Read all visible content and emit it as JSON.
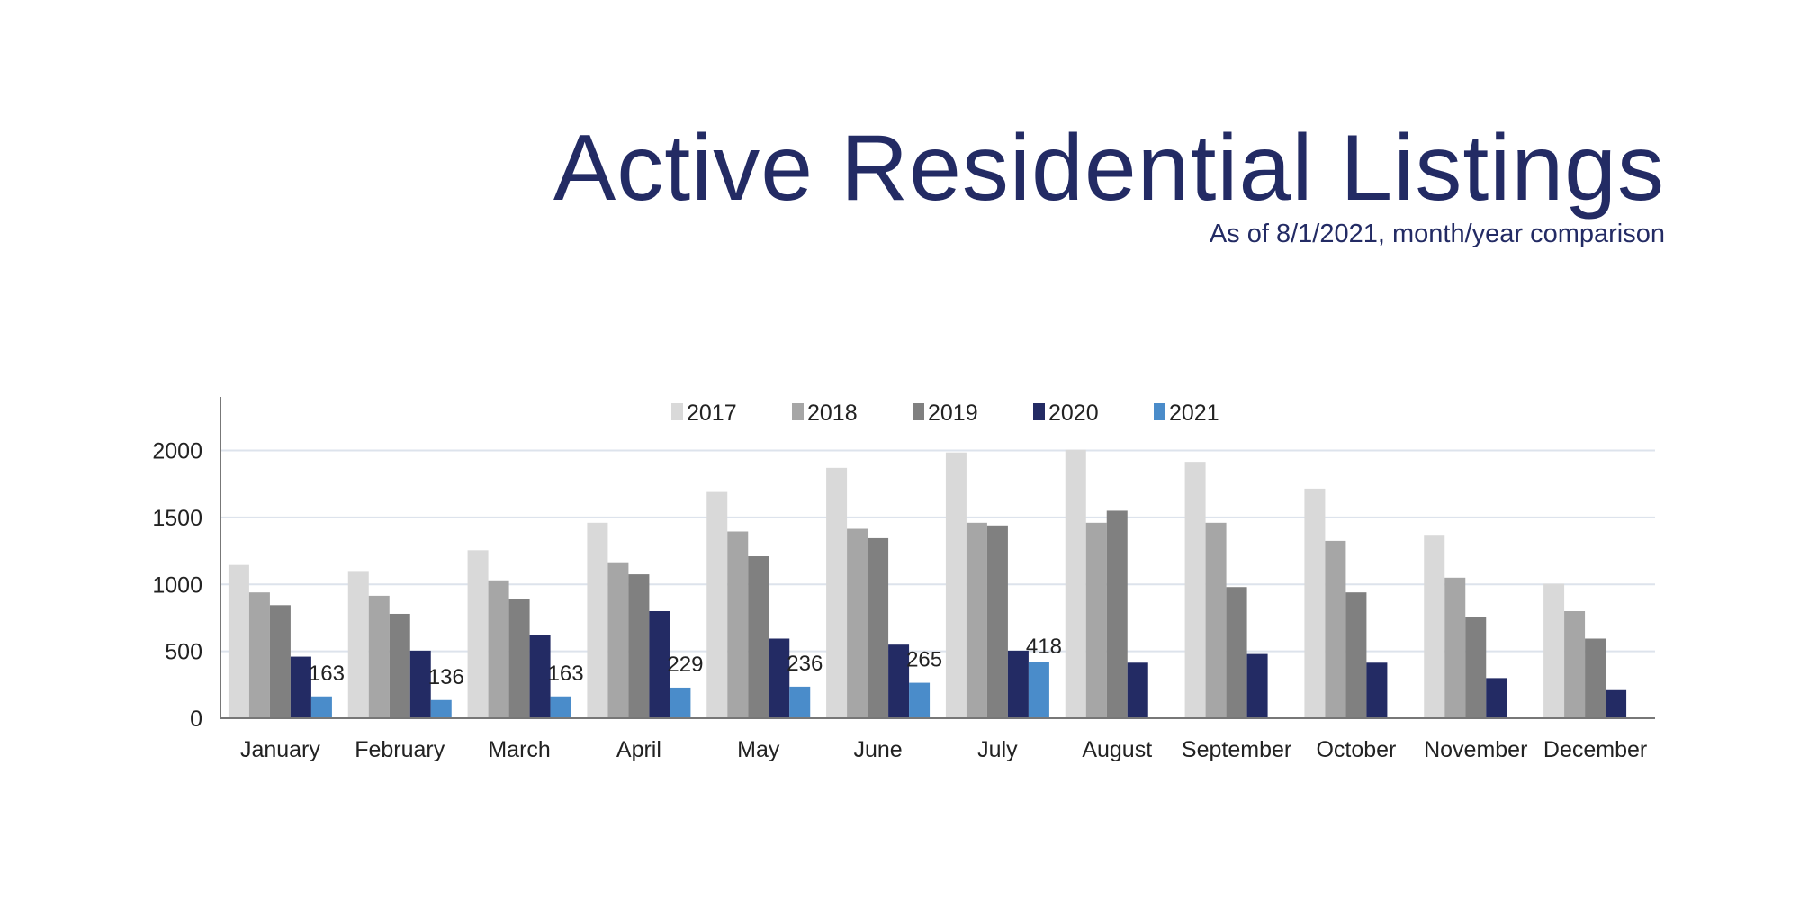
{
  "title": "Active Residential Listings",
  "subtitle": "As of 8/1/2021, month/year comparison",
  "chart_data": {
    "type": "bar",
    "title": "Active Residential Listings",
    "subtitle": "As of 8/1/2021, month/year comparison",
    "xlabel": "",
    "ylabel": "",
    "ylim": [
      0,
      2400
    ],
    "yticks": [
      0,
      500,
      1000,
      1500,
      2000
    ],
    "grid": true,
    "legend": "top-center",
    "categories": [
      "January",
      "February",
      "March",
      "April",
      "May",
      "June",
      "July",
      "August",
      "September",
      "October",
      "November",
      "December"
    ],
    "series": [
      {
        "name": "2017",
        "color": "#d9d9d9",
        "values": [
          1145,
          1100,
          1255,
          1460,
          1690,
          1870,
          1985,
          2005,
          1915,
          1715,
          1370,
          1005
        ]
      },
      {
        "name": "2018",
        "color": "#a6a6a6",
        "values": [
          940,
          915,
          1030,
          1165,
          1395,
          1415,
          1460,
          1460,
          1460,
          1325,
          1050,
          800
        ]
      },
      {
        "name": "2019",
        "color": "#808080",
        "values": [
          845,
          780,
          890,
          1075,
          1210,
          1345,
          1440,
          1550,
          980,
          940,
          755,
          595
        ]
      },
      {
        "name": "2020",
        "color": "#232b64",
        "values": [
          460,
          505,
          620,
          800,
          595,
          550,
          505,
          415,
          480,
          415,
          300,
          210
        ]
      },
      {
        "name": "2021",
        "color": "#4a8cca",
        "values": [
          163,
          136,
          163,
          229,
          236,
          265,
          418,
          null,
          null,
          null,
          null,
          null
        ],
        "data_labels": true
      }
    ]
  }
}
